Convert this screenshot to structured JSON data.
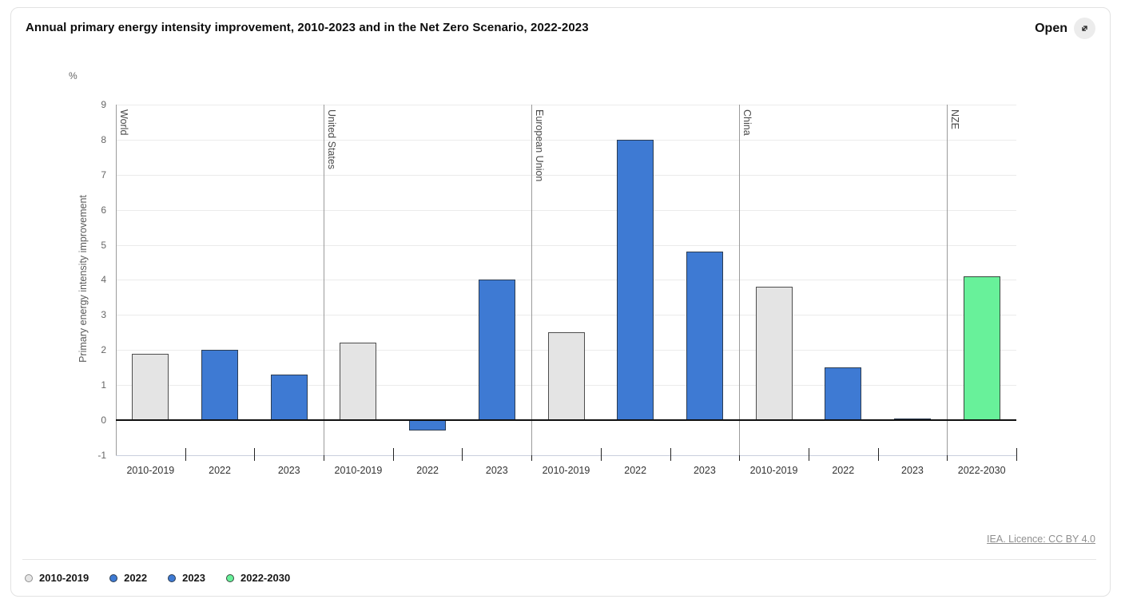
{
  "header": {
    "title": "Annual primary energy intensity improvement, 2010-2023 and in the Net Zero Scenario, 2022-2023",
    "open_label": "Open"
  },
  "footer": {
    "licence_text": "IEA. Licence: CC BY 4.0"
  },
  "legend": [
    {
      "label": "2010-2019",
      "fill": "#e6e6e6",
      "stroke": "#8f8f8f"
    },
    {
      "label": "2022",
      "fill": "#3e7ad3",
      "stroke": "#2b3c52"
    },
    {
      "label": "2023",
      "fill": "#3e7ad3",
      "stroke": "#2b3c52"
    },
    {
      "label": "2022-2030",
      "fill": "#68f19a",
      "stroke": "#36493c"
    }
  ],
  "chart_data": {
    "type": "bar",
    "title": "Annual primary energy intensity improvement, 2010-2023 and in the Net Zero Scenario, 2022-2023",
    "unit_label": "%",
    "xlabel": "",
    "ylabel": "Primary energy intensity improvement",
    "ylim": [
      -1,
      9
    ],
    "yticks": [
      -1,
      0,
      1,
      2,
      3,
      4,
      5,
      6,
      7,
      8,
      9
    ],
    "grid": true,
    "legend_position": "bottom-left",
    "series_styles": {
      "2010-2019": {
        "fill": "#e4e4e4",
        "stroke": "#4d4d4d"
      },
      "2022": {
        "fill": "#3e7ad3",
        "stroke": "#2b3c52"
      },
      "2023": {
        "fill": "#3e7ad3",
        "stroke": "#2b3c52"
      },
      "2022-2030": {
        "fill": "#68f19a",
        "stroke": "#36493c"
      }
    },
    "groups": [
      {
        "name": "World",
        "bars": [
          {
            "category": "2010-2019",
            "series": "2010-2019",
            "value": 1.9
          },
          {
            "category": "2022",
            "series": "2022",
            "value": 2.0
          },
          {
            "category": "2023",
            "series": "2023",
            "value": 1.3
          }
        ]
      },
      {
        "name": "United States",
        "bars": [
          {
            "category": "2010-2019",
            "series": "2010-2019",
            "value": 2.2
          },
          {
            "category": "2022",
            "series": "2022",
            "value": -0.3
          },
          {
            "category": "2023",
            "series": "2023",
            "value": 4.0
          }
        ]
      },
      {
        "name": "European Union",
        "bars": [
          {
            "category": "2010-2019",
            "series": "2010-2019",
            "value": 2.5
          },
          {
            "category": "2022",
            "series": "2022",
            "value": 8.0
          },
          {
            "category": "2023",
            "series": "2023",
            "value": 4.8
          }
        ]
      },
      {
        "name": "China",
        "bars": [
          {
            "category": "2010-2019",
            "series": "2010-2019",
            "value": 3.8
          },
          {
            "category": "2022",
            "series": "2022",
            "value": 1.5
          },
          {
            "category": "2023",
            "series": "2023",
            "value": 0.05
          }
        ]
      },
      {
        "name": "NZE",
        "bars": [
          {
            "category": "2022-2030",
            "series": "2022-2030",
            "value": 4.1
          }
        ]
      }
    ]
  }
}
